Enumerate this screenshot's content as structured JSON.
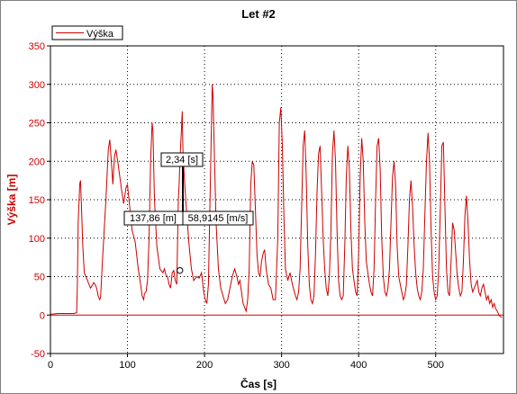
{
  "window": {
    "title": "Let #2"
  },
  "chart_data": {
    "type": "line",
    "title": "Let #2",
    "xlabel": "Čas [s]",
    "ylabel": "Výška [m]",
    "xlim": [
      0,
      588
    ],
    "ylim": [
      -50,
      350
    ],
    "xticks": [
      0,
      100,
      200,
      300,
      400,
      500
    ],
    "yticks": [
      -50,
      0,
      50,
      100,
      150,
      200,
      250,
      300,
      350
    ],
    "grid": true,
    "legend": {
      "placement": "top-left"
    },
    "series": [
      {
        "name": "Výška",
        "color": "#cc0000",
        "points": [
          [
            0,
            1
          ],
          [
            10,
            2
          ],
          [
            20,
            2
          ],
          [
            30,
            2
          ],
          [
            34,
            3
          ],
          [
            35,
            40
          ],
          [
            36,
            120
          ],
          [
            38,
            170
          ],
          [
            39,
            175
          ],
          [
            40,
            150
          ],
          [
            42,
            90
          ],
          [
            44,
            55
          ],
          [
            46,
            50
          ],
          [
            48,
            45
          ],
          [
            50,
            40
          ],
          [
            52,
            35
          ],
          [
            54,
            38
          ],
          [
            56,
            42
          ],
          [
            58,
            40
          ],
          [
            60,
            35
          ],
          [
            62,
            25
          ],
          [
            64,
            20
          ],
          [
            65,
            22
          ],
          [
            68,
            80
          ],
          [
            72,
            150
          ],
          [
            75,
            215
          ],
          [
            77,
            228
          ],
          [
            79,
            200
          ],
          [
            81,
            170
          ],
          [
            83,
            205
          ],
          [
            85,
            215
          ],
          [
            88,
            195
          ],
          [
            90,
            180
          ],
          [
            92,
            165
          ],
          [
            95,
            145
          ],
          [
            98,
            165
          ],
          [
            100,
            170
          ],
          [
            103,
            140
          ],
          [
            106,
            110
          ],
          [
            110,
            95
          ],
          [
            114,
            60
          ],
          [
            117,
            40
          ],
          [
            119,
            25
          ],
          [
            121,
            20
          ],
          [
            122,
            28
          ],
          [
            124,
            30
          ],
          [
            126,
            45
          ],
          [
            128,
            100
          ],
          [
            130,
            200
          ],
          [
            132,
            250
          ],
          [
            133,
            240
          ],
          [
            135,
            150
          ],
          [
            138,
            90
          ],
          [
            142,
            60
          ],
          [
            146,
            55
          ],
          [
            148,
            60
          ],
          [
            150,
            52
          ],
          [
            152,
            50
          ],
          [
            154,
            40
          ],
          [
            156,
            35
          ],
          [
            158,
            55
          ],
          [
            160,
            58
          ],
          [
            162,
            45
          ],
          [
            164,
            40
          ],
          [
            166,
            150
          ],
          [
            167,
            170
          ],
          [
            168,
            200
          ],
          [
            170,
            240
          ],
          [
            171,
            265
          ],
          [
            172,
            215
          ],
          [
            174,
            175
          ],
          [
            177,
            130
          ],
          [
            180,
            90
          ],
          [
            183,
            60
          ],
          [
            186,
            45
          ],
          [
            190,
            50
          ],
          [
            193,
            48
          ],
          [
            196,
            55
          ],
          [
            199,
            30
          ],
          [
            201,
            20
          ],
          [
            203,
            15
          ],
          [
            205,
            40
          ],
          [
            207,
            145
          ],
          [
            209,
            250
          ],
          [
            210,
            300
          ],
          [
            211,
            285
          ],
          [
            213,
            200
          ],
          [
            215,
            120
          ],
          [
            218,
            60
          ],
          [
            221,
            35
          ],
          [
            224,
            25
          ],
          [
            227,
            15
          ],
          [
            230,
            20
          ],
          [
            233,
            35
          ],
          [
            236,
            50
          ],
          [
            239,
            60
          ],
          [
            242,
            50
          ],
          [
            244,
            40
          ],
          [
            246,
            45
          ],
          [
            248,
            30
          ],
          [
            250,
            15
          ],
          [
            252,
            10
          ],
          [
            254,
            5
          ],
          [
            256,
            20
          ],
          [
            258,
            60
          ],
          [
            260,
            170
          ],
          [
            262,
            200
          ],
          [
            264,
            195
          ],
          [
            266,
            140
          ],
          [
            268,
            80
          ],
          [
            270,
            55
          ],
          [
            272,
            50
          ],
          [
            274,
            70
          ],
          [
            276,
            80
          ],
          [
            278,
            85
          ],
          [
            280,
            60
          ],
          [
            283,
            40
          ],
          [
            286,
            35
          ],
          [
            289,
            20
          ],
          [
            292,
            20
          ],
          [
            295,
            100
          ],
          [
            297,
            250
          ],
          [
            299,
            270
          ],
          [
            301,
            220
          ],
          [
            303,
            130
          ],
          [
            305,
            60
          ],
          [
            308,
            45
          ],
          [
            311,
            55
          ],
          [
            314,
            40
          ],
          [
            318,
            25
          ],
          [
            320,
            20
          ],
          [
            322,
            30
          ],
          [
            324,
            60
          ],
          [
            326,
            140
          ],
          [
            328,
            220
          ],
          [
            330,
            240
          ],
          [
            332,
            180
          ],
          [
            334,
            90
          ],
          [
            336,
            40
          ],
          [
            338,
            20
          ],
          [
            340,
            15
          ],
          [
            342,
            25
          ],
          [
            344,
            80
          ],
          [
            346,
            160
          ],
          [
            348,
            210
          ],
          [
            350,
            220
          ],
          [
            352,
            160
          ],
          [
            354,
            100
          ],
          [
            356,
            60
          ],
          [
            358,
            35
          ],
          [
            360,
            25
          ],
          [
            362,
            50
          ],
          [
            364,
            110
          ],
          [
            366,
            210
          ],
          [
            368,
            240
          ],
          [
            370,
            200
          ],
          [
            372,
            110
          ],
          [
            374,
            45
          ],
          [
            376,
            25
          ],
          [
            378,
            20
          ],
          [
            380,
            25
          ],
          [
            382,
            90
          ],
          [
            384,
            180
          ],
          [
            386,
            220
          ],
          [
            388,
            190
          ],
          [
            390,
            110
          ],
          [
            392,
            60
          ],
          [
            394,
            45
          ],
          [
            396,
            30
          ],
          [
            398,
            25
          ],
          [
            400,
            80
          ],
          [
            402,
            180
          ],
          [
            404,
            230
          ],
          [
            406,
            200
          ],
          [
            408,
            120
          ],
          [
            410,
            70
          ],
          [
            412,
            55
          ],
          [
            414,
            40
          ],
          [
            416,
            30
          ],
          [
            418,
            25
          ],
          [
            420,
            60
          ],
          [
            422,
            150
          ],
          [
            424,
            220
          ],
          [
            426,
            230
          ],
          [
            428,
            190
          ],
          [
            430,
            100
          ],
          [
            432,
            50
          ],
          [
            434,
            30
          ],
          [
            436,
            25
          ],
          [
            438,
            35
          ],
          [
            440,
            60
          ],
          [
            442,
            120
          ],
          [
            444,
            180
          ],
          [
            446,
            200
          ],
          [
            448,
            170
          ],
          [
            450,
            90
          ],
          [
            452,
            50
          ],
          [
            454,
            40
          ],
          [
            456,
            30
          ],
          [
            458,
            20
          ],
          [
            460,
            25
          ],
          [
            462,
            40
          ],
          [
            464,
            90
          ],
          [
            466,
            150
          ],
          [
            468,
            175
          ],
          [
            470,
            140
          ],
          [
            472,
            90
          ],
          [
            474,
            55
          ],
          [
            476,
            35
          ],
          [
            478,
            25
          ],
          [
            480,
            20
          ],
          [
            482,
            30
          ],
          [
            484,
            60
          ],
          [
            486,
            130
          ],
          [
            488,
            200
          ],
          [
            490,
            237
          ],
          [
            492,
            200
          ],
          [
            494,
            110
          ],
          [
            496,
            50
          ],
          [
            498,
            30
          ],
          [
            500,
            20
          ],
          [
            502,
            25
          ],
          [
            504,
            60
          ],
          [
            506,
            140
          ],
          [
            508,
            220
          ],
          [
            510,
            225
          ],
          [
            512,
            140
          ],
          [
            514,
            60
          ],
          [
            516,
            30
          ],
          [
            518,
            25
          ],
          [
            520,
            70
          ],
          [
            522,
            120
          ],
          [
            524,
            110
          ],
          [
            526,
            80
          ],
          [
            528,
            50
          ],
          [
            530,
            35
          ],
          [
            532,
            25
          ],
          [
            534,
            30
          ],
          [
            536,
            70
          ],
          [
            538,
            130
          ],
          [
            540,
            155
          ],
          [
            542,
            120
          ],
          [
            544,
            70
          ],
          [
            546,
            40
          ],
          [
            548,
            30
          ],
          [
            550,
            35
          ],
          [
            552,
            40
          ],
          [
            554,
            45
          ],
          [
            556,
            30
          ],
          [
            558,
            25
          ],
          [
            560,
            35
          ],
          [
            562,
            40
          ],
          [
            564,
            30
          ],
          [
            566,
            20
          ],
          [
            568,
            25
          ],
          [
            570,
            15
          ],
          [
            572,
            20
          ],
          [
            574,
            10
          ],
          [
            576,
            15
          ],
          [
            578,
            8
          ],
          [
            580,
            5
          ],
          [
            582,
            0
          ],
          [
            584,
            -2
          ],
          [
            586,
            -3
          ]
        ]
      }
    ],
    "annotations": [
      {
        "label": "2,34 [s]"
      },
      {
        "label": "137,86 [m]"
      },
      {
        "label": "58,9145 [m/s]"
      }
    ],
    "marker": {
      "x": 168,
      "y": 58
    }
  }
}
